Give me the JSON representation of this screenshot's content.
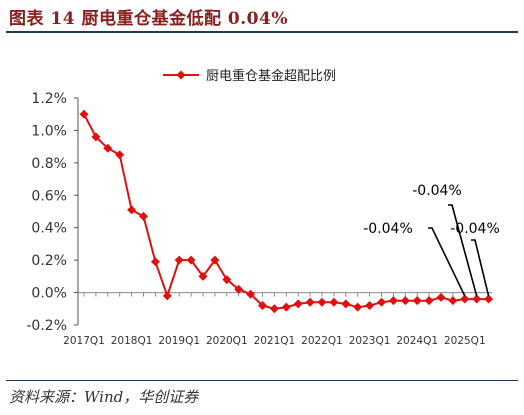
{
  "header": {
    "title": "图表 14  厨电重仓基金低配 0.04%"
  },
  "footer": {
    "source": "资料来源：Wind，华创证券"
  },
  "colors": {
    "series": "#E01010",
    "title": "#8B1E1E",
    "rule": "#1F3A5F",
    "axis": "#333333"
  },
  "chart_data": {
    "type": "line",
    "legend": {
      "position": "top",
      "label": "厨电重仓基金超配比例"
    },
    "series": [
      {
        "name": "厨电重仓基金超配比例",
        "values": [
          1.1,
          0.96,
          0.89,
          0.85,
          0.51,
          0.47,
          0.19,
          -0.02,
          0.2,
          0.2,
          0.1,
          0.2,
          0.08,
          0.02,
          -0.01,
          -0.08,
          -0.1,
          -0.09,
          -0.07,
          -0.06,
          -0.06,
          -0.06,
          -0.07,
          -0.09,
          -0.08,
          -0.06,
          -0.05,
          -0.05,
          -0.05,
          -0.05,
          -0.03,
          -0.05,
          -0.04,
          -0.04,
          -0.04
        ]
      }
    ],
    "x_tick_labels": [
      "2017Q1",
      "2018Q1",
      "2019Q1",
      "2020Q1",
      "2021Q1",
      "2022Q1",
      "2023Q1",
      "2024Q1",
      "2025Q1"
    ],
    "y_tick_labels": [
      "1.2%",
      "1.0%",
      "0.8%",
      "0.6%",
      "0.4%",
      "0.2%",
      "0.0%",
      "-0.2%"
    ],
    "ylim": [
      -0.2,
      1.2
    ],
    "annotations": [
      {
        "text": "-0.04%",
        "point_index": 32
      },
      {
        "text": "-0.04%",
        "point_index": 33
      },
      {
        "text": "-0.04%",
        "point_index": 34
      }
    ]
  }
}
